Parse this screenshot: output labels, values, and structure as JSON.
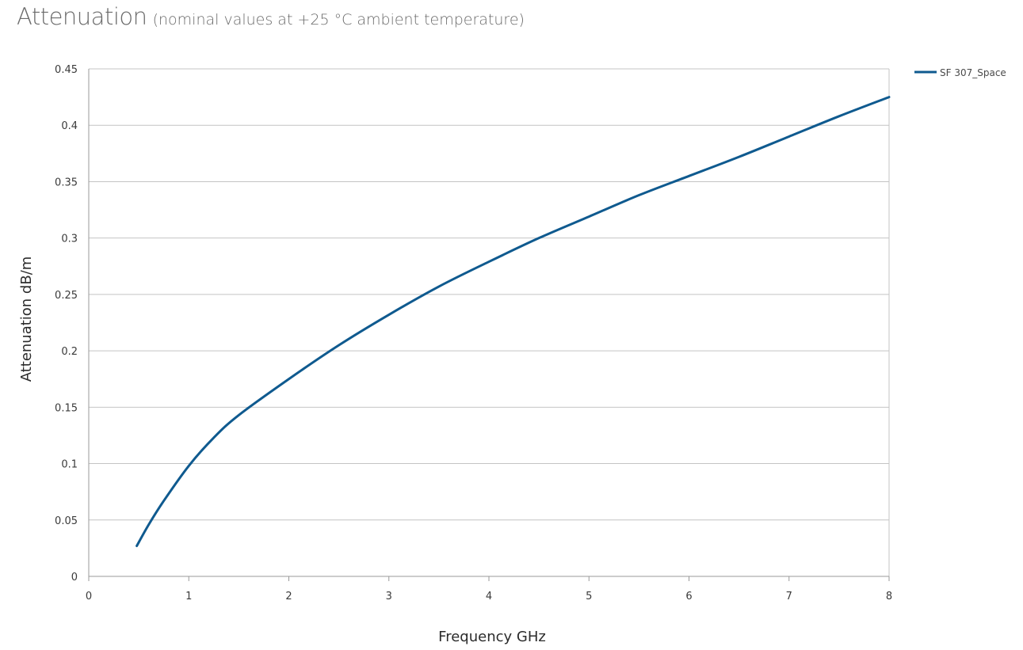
{
  "header": {
    "title": "Attenuation",
    "subtitle": "(nominal values at +25 °C ambient temperature)"
  },
  "colors": {
    "series": "#0f5a8f",
    "grid": "#c4c4c4",
    "axis": "#9a9a9a"
  },
  "chart_data": {
    "type": "line",
    "xlabel": "Frequency GHz",
    "ylabel": "Attenuation dB/m",
    "xlim": [
      0,
      8
    ],
    "ylim": [
      0,
      0.45
    ],
    "x_ticks": [
      "0",
      "1",
      "2",
      "3",
      "4",
      "5",
      "6",
      "7",
      "8"
    ],
    "y_ticks": [
      "0",
      "0.05",
      "0.1",
      "0.15",
      "0.2",
      "0.25",
      "0.3",
      "0.35",
      "0.4",
      "0.45"
    ],
    "grid": "horizontal",
    "legend_position": "top-right",
    "series": [
      {
        "name": "SF 307_Space",
        "color": "#0f5a8f",
        "x": [
          0.48,
          0.6,
          0.75,
          1.0,
          1.25,
          1.5,
          2.0,
          2.5,
          3.0,
          3.5,
          4.0,
          4.5,
          5.0,
          5.5,
          6.0,
          6.5,
          7.0,
          7.5,
          8.0
        ],
        "y": [
          0.027,
          0.046,
          0.067,
          0.098,
          0.123,
          0.143,
          0.175,
          0.205,
          0.232,
          0.257,
          0.279,
          0.3,
          0.319,
          0.338,
          0.355,
          0.372,
          0.39,
          0.408,
          0.425
        ]
      }
    ]
  }
}
